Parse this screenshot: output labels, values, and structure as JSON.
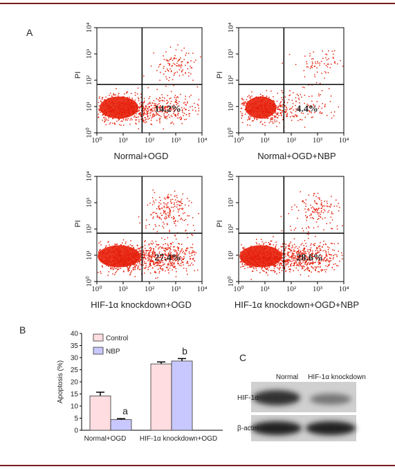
{
  "panel_a": {
    "label": "A",
    "axis_label": "PI",
    "ticks": [
      {
        "value": 1,
        "label": "10⁰"
      },
      {
        "value": 10,
        "label": "10¹"
      },
      {
        "value": 100,
        "label": "10²"
      },
      {
        "value": 1000,
        "label": "10³"
      },
      {
        "value": 10000,
        "label": "10⁴"
      }
    ],
    "plots": [
      {
        "caption": "Normal+OGD",
        "quadrant_label": "14.2%"
      },
      {
        "caption": "Normal+OGD+NBP",
        "quadrant_label": "4.4%"
      },
      {
        "caption": "HIF-1α knockdown+OGD",
        "quadrant_label": "27.4%"
      },
      {
        "caption": "HIF-1α knockdown+OGD+NBP",
        "quadrant_label": "28.6%"
      }
    ]
  },
  "chart_data": {
    "type": "bar",
    "panel_label": "B",
    "ylabel": "Apoptosis (%)",
    "categories": [
      "Normal+OGD",
      "HIF-1α knockdown+OGD"
    ],
    "series": [
      {
        "name": "Control",
        "color": "#ffdde0",
        "values": [
          14.2,
          27.4
        ],
        "errors": [
          1.5,
          0.8
        ]
      },
      {
        "name": "NBP",
        "color": "#c8c8ff",
        "values": [
          4.4,
          28.6
        ],
        "errors": [
          0.4,
          1.0
        ]
      }
    ],
    "annotations": [
      "a",
      "b"
    ],
    "ylim": [
      0,
      40
    ],
    "yticks": [
      0,
      5,
      10,
      15,
      20,
      25,
      30,
      35,
      40
    ]
  },
  "panel_c": {
    "label": "C",
    "columns": [
      "Normal",
      "HIF-1α knockdown"
    ],
    "rows": [
      "HIF-1α",
      "β-actin"
    ]
  }
}
